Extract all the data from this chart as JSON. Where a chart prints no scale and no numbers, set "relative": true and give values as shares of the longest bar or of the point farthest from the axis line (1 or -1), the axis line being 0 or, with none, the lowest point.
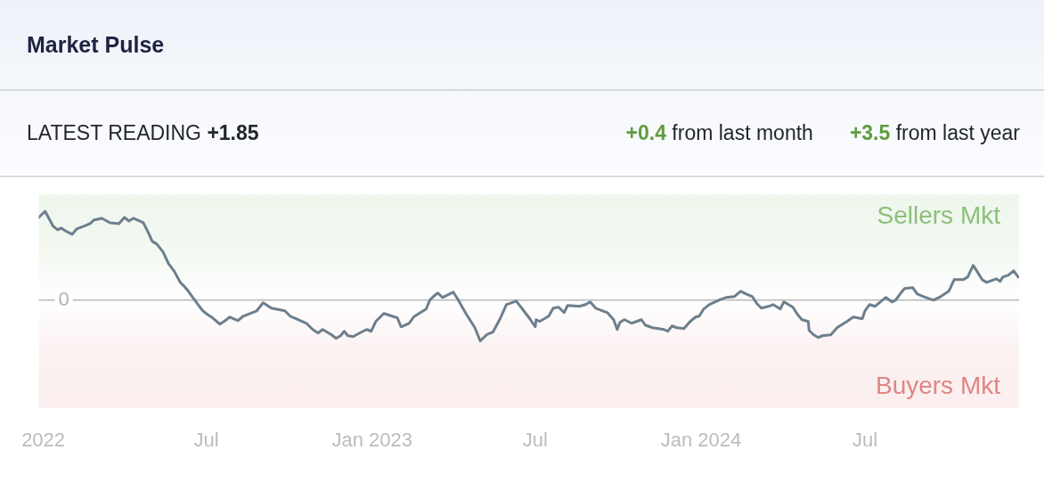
{
  "chart_data": {
    "type": "line",
    "title": "Market Pulse",
    "annotations": [
      "LATEST READING +1.85",
      "+0.4 from last month",
      "+3.5 from last year"
    ],
    "relative": true,
    "color": "#6d7f8d",
    "xlim": [
      "2021-12-27",
      "2024-12-19"
    ],
    "xticks": [
      {
        "value": "2022-01-01",
        "label": "2022"
      },
      {
        "value": "2022-07-01",
        "label": "Jul"
      },
      {
        "value": "2023-01-01",
        "label": "Jan 2023"
      },
      {
        "value": "2023-07-01",
        "label": "Jul"
      },
      {
        "value": "2024-01-01",
        "label": "Jan 2024"
      },
      {
        "value": "2024-07-01",
        "label": "Jul"
      }
    ],
    "bands": [
      {
        "axis": "y",
        "from": 0,
        "to": 1.19,
        "label": "Sellers Mkt",
        "color": "#8cc07a"
      },
      {
        "axis": "y",
        "from": -1.21,
        "to": 0,
        "label": "Buyers Mkt",
        "color": "#df8585"
      }
    ],
    "ref_lines": [
      {
        "axis": "y",
        "value": 0,
        "label": "0",
        "color": "#c6c6c6"
      }
    ],
    "x": [
      "2021-12-27",
      "2022-01-03",
      "2022-01-12",
      "2022-01-17",
      "2022-01-21",
      "2022-01-27",
      "2022-02-02",
      "2022-02-07",
      "2022-02-15",
      "2022-02-22",
      "2022-02-26",
      "2022-03-07",
      "2022-03-16",
      "2022-03-26",
      "2022-04-01",
      "2022-04-06",
      "2022-04-11",
      "2022-04-22",
      "2022-04-27",
      "2022-05-02",
      "2022-05-07",
      "2022-05-14",
      "2022-05-20",
      "2022-05-26",
      "2022-06-02",
      "2022-06-06",
      "2022-06-11",
      "2022-06-21",
      "2022-06-27",
      "2022-07-02",
      "2022-07-08",
      "2022-07-16",
      "2022-07-22",
      "2022-07-27",
      "2022-08-05",
      "2022-08-11",
      "2022-08-16",
      "2022-08-26",
      "2022-09-02",
      "2022-09-11",
      "2022-09-26",
      "2022-10-02",
      "2022-10-09",
      "2022-10-20",
      "2022-10-27",
      "2022-11-02",
      "2022-11-07",
      "2022-11-17",
      "2022-11-22",
      "2022-11-27",
      "2022-12-01",
      "2022-12-05",
      "2022-12-11",
      "2022-12-18",
      "2022-12-26",
      "2022-12-31",
      "2023-01-05",
      "2023-01-14",
      "2023-01-29",
      "2023-02-02",
      "2023-02-11",
      "2023-02-16",
      "2023-02-22",
      "2023-03-02",
      "2023-03-06",
      "2023-03-11",
      "2023-03-15",
      "2023-03-20",
      "2023-04-01",
      "2023-04-06",
      "2023-04-15",
      "2023-04-25",
      "2023-05-01",
      "2023-05-08",
      "2023-05-15",
      "2023-05-23",
      "2023-05-30",
      "2023-06-10",
      "2023-06-19",
      "2023-06-25",
      "2023-07-01",
      "2023-07-02",
      "2023-07-06",
      "2023-07-16",
      "2023-07-21",
      "2023-07-27",
      "2023-08-02",
      "2023-08-06",
      "2023-08-19",
      "2023-08-26",
      "2023-08-31",
      "2023-09-06",
      "2023-09-19",
      "2023-09-26",
      "2023-09-30",
      "2023-10-03",
      "2023-10-08",
      "2023-10-16",
      "2023-10-27",
      "2023-10-31",
      "2023-11-08",
      "2023-11-21",
      "2023-11-25",
      "2023-11-30",
      "2023-12-05",
      "2023-12-13",
      "2023-12-20",
      "2023-12-26",
      "2023-12-30",
      "2024-01-04",
      "2024-01-10",
      "2024-01-23",
      "2024-01-29",
      "2024-02-07",
      "2024-02-14",
      "2024-02-20",
      "2024-02-27",
      "2024-03-03",
      "2024-03-08",
      "2024-03-16",
      "2024-03-21",
      "2024-03-29",
      "2024-04-02",
      "2024-04-12",
      "2024-04-17",
      "2024-04-22",
      "2024-04-29",
      "2024-04-30",
      "2024-05-05",
      "2024-05-10",
      "2024-05-15",
      "2024-05-24",
      "2024-05-31",
      "2024-06-11",
      "2024-06-18",
      "2024-06-28",
      "2024-07-01",
      "2024-07-06",
      "2024-07-12",
      "2024-07-18",
      "2024-07-24",
      "2024-07-31",
      "2024-08-04",
      "2024-08-09",
      "2024-08-14",
      "2024-08-23",
      "2024-08-28",
      "2024-09-04",
      "2024-09-15",
      "2024-09-23",
      "2024-10-02",
      "2024-10-08",
      "2024-10-18",
      "2024-10-23",
      "2024-10-29",
      "2024-11-02",
      "2024-11-08",
      "2024-11-13",
      "2024-11-24",
      "2024-11-28",
      "2024-12-01",
      "2024-12-07",
      "2024-12-13",
      "2024-12-18"
    ],
    "values": [
      0.93,
      1.0,
      0.83,
      0.79,
      0.81,
      0.77,
      0.74,
      0.8,
      0.83,
      0.86,
      0.9,
      0.92,
      0.87,
      0.86,
      0.93,
      0.89,
      0.92,
      0.87,
      0.77,
      0.66,
      0.63,
      0.54,
      0.41,
      0.33,
      0.2,
      0.16,
      0.1,
      -0.04,
      -0.12,
      -0.16,
      -0.2,
      -0.27,
      -0.23,
      -0.19,
      -0.23,
      -0.18,
      -0.16,
      -0.12,
      -0.03,
      -0.09,
      -0.12,
      -0.18,
      -0.21,
      -0.26,
      -0.33,
      -0.37,
      -0.33,
      -0.39,
      -0.43,
      -0.4,
      -0.35,
      -0.4,
      -0.41,
      -0.37,
      -0.33,
      -0.35,
      -0.24,
      -0.15,
      -0.2,
      -0.3,
      -0.26,
      -0.19,
      -0.15,
      -0.1,
      0.0,
      0.05,
      0.08,
      0.03,
      0.09,
      0.01,
      -0.15,
      -0.31,
      -0.46,
      -0.39,
      -0.36,
      -0.21,
      -0.05,
      -0.01,
      -0.13,
      -0.21,
      -0.3,
      -0.22,
      -0.24,
      -0.18,
      -0.09,
      -0.08,
      -0.14,
      -0.06,
      -0.07,
      -0.05,
      -0.02,
      -0.09,
      -0.14,
      -0.22,
      -0.33,
      -0.25,
      -0.22,
      -0.26,
      -0.22,
      -0.28,
      -0.31,
      -0.33,
      -0.35,
      -0.29,
      -0.31,
      -0.32,
      -0.24,
      -0.19,
      -0.18,
      -0.1,
      -0.05,
      0.01,
      0.03,
      0.04,
      0.1,
      0.07,
      0.04,
      -0.04,
      -0.09,
      -0.07,
      -0.05,
      -0.1,
      -0.02,
      -0.08,
      -0.16,
      -0.22,
      -0.24,
      -0.34,
      -0.39,
      -0.42,
      -0.4,
      -0.39,
      -0.31,
      -0.24,
      -0.19,
      -0.21,
      -0.12,
      -0.05,
      -0.07,
      -0.02,
      0.03,
      -0.02,
      0.0,
      0.07,
      0.13,
      0.14,
      0.07,
      0.04,
      0.0,
      0.04,
      0.1,
      0.23,
      0.23,
      0.26,
      0.39,
      0.33,
      0.23,
      0.2,
      0.24,
      0.21,
      0.26,
      0.28,
      0.33,
      0.26
    ]
  }
}
